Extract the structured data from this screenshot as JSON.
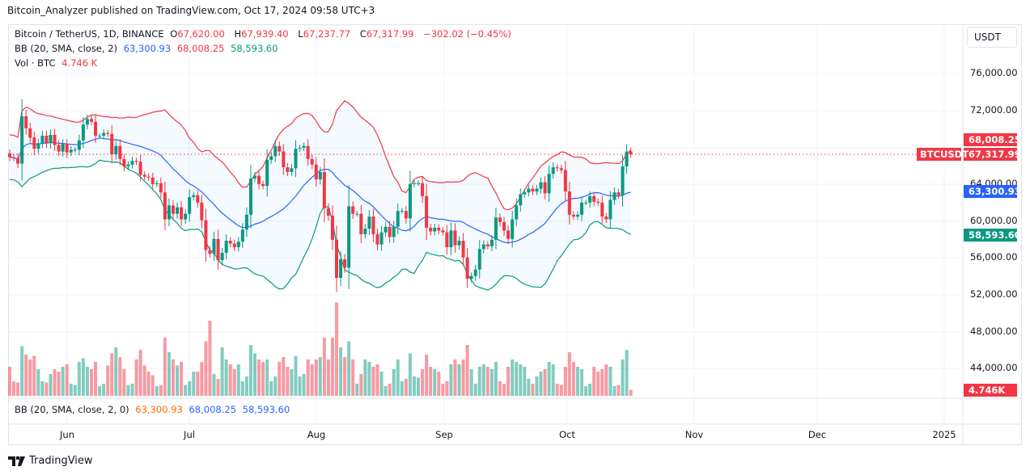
{
  "header": "Bitcoin_Analyzer published on TradingView.com, Oct 17, 2024 09:58 UTC+3",
  "legend": {
    "symbol": "Bitcoin / TetherUS, 1D, BINANCE",
    "o_label": "O",
    "o": "67,620.00",
    "h_label": "H",
    "h": "67,939.40",
    "l_label": "L",
    "l": "67,237.77",
    "c_label": "C",
    "c": "67,317.99",
    "change": "−302.02 (−0.45%)",
    "bb_label": "BB (20, SMA, close, 2)",
    "bb_basis": "63,300.93",
    "bb_upper": "68,008.25",
    "bb_lower": "58,593.60",
    "vol_label": "Vol · BTC",
    "vol": "4.746 K"
  },
  "bb_pane": {
    "label": "BB (20, SMA, close, 2, 0)",
    "basis": "63,300.93",
    "upper": "68,008.25",
    "lower": "58,593.60"
  },
  "price_axis": {
    "currency": "USDT",
    "ticks": [
      "76,000.00",
      "72,000.00",
      "64,000.00",
      "60,000.00",
      "56,000.00",
      "52,000.00",
      "48,000.00",
      "44,000.00"
    ],
    "tags": {
      "upper": "68,008.25",
      "last": "67,317.99",
      "basis": "63,300.93",
      "lower": "58,593.60",
      "volume": "4.746K",
      "symbol": "BTCUSDT"
    }
  },
  "time_axis": [
    "Jun",
    "Jul",
    "Aug",
    "Sep",
    "Oct",
    "Nov",
    "Dec",
    "2025"
  ],
  "footer": "TradingView",
  "colors": {
    "up": "#089981",
    "down": "#f23645",
    "bb_upper": "#f23645",
    "bb_basis": "#2962ff",
    "bb_lower": "#089981"
  },
  "chart_data": {
    "type": "candlestick",
    "timeframe": "1D",
    "start_date": "2024-05-17",
    "end_date": "2024-10-16",
    "ylim": [
      42000,
      78000
    ],
    "indicators": [
      "Bollinger Bands (20, SMA, 2)",
      "Volume"
    ],
    "close": [
      67.0,
      66.9,
      66.3,
      71.4,
      70.1,
      69.1,
      67.9,
      68.5,
      69.3,
      68.5,
      69.4,
      68.3,
      67.6,
      68.4,
      67.5,
      67.8,
      67.8,
      68.8,
      70.5,
      71.1,
      70.8,
      69.3,
      69.3,
      69.6,
      69.5,
      67.3,
      68.2,
      66.8,
      66.0,
      66.2,
      66.6,
      66.5,
      65.1,
      64.9,
      64.8,
      64.1,
      64.2,
      63.2,
      60.3,
      61.8,
      60.9,
      61.6,
      60.3,
      60.9,
      62.7,
      62.9,
      62.1,
      60.2,
      57.0,
      56.6,
      58.2,
      55.9,
      56.7,
      58.0,
      57.7,
      57.3,
      57.9,
      59.2,
      60.8,
      64.7,
      65.0,
      64.1,
      63.9,
      66.7,
      67.1,
      68.2,
      67.6,
      65.9,
      65.4,
      65.8,
      67.9,
      68.0,
      68.2,
      66.8,
      66.2,
      64.6,
      65.4,
      61.5,
      60.7,
      58.1,
      54.0,
      56.0,
      55.1,
      61.7,
      60.9,
      60.9,
      58.7,
      59.3,
      60.6,
      58.7,
      57.6,
      58.9,
      59.5,
      58.4,
      59.5,
      61.2,
      61.2,
      60.4,
      64.1,
      64.2,
      64.2,
      62.8,
      59.4,
      59.0,
      59.4,
      59.1,
      58.9,
      57.3,
      59.1,
      57.5,
      58.0,
      56.2,
      53.9,
      54.2,
      54.9,
      57.1,
      57.6,
      57.4,
      58.1,
      60.5,
      60.0,
      59.1,
      58.2,
      60.3,
      61.8,
      63.0,
      63.2,
      63.6,
      63.3,
      63.6,
      64.3,
      63.1,
      65.2,
      65.9,
      65.8,
      65.6,
      63.3,
      60.8,
      60.6,
      60.8,
      62.1,
      62.1,
      62.8,
      62.2,
      62.1,
      60.6,
      60.3,
      62.4,
      63.2,
      62.9,
      66.0,
      67.6,
      67.318
    ],
    "close_unit": "thousand USDT",
    "volume": [
      24,
      12,
      11,
      41,
      34,
      30,
      33,
      22,
      12,
      11,
      18,
      22,
      20,
      24,
      26,
      10,
      9,
      28,
      31,
      24,
      22,
      28,
      8,
      10,
      25,
      35,
      40,
      32,
      22,
      9,
      10,
      30,
      38,
      25,
      20,
      17,
      8,
      9,
      48,
      36,
      30,
      25,
      28,
      9,
      12,
      20,
      20,
      28,
      45,
      62,
      18,
      14,
      40,
      30,
      26,
      22,
      26,
      12,
      16,
      42,
      35,
      30,
      28,
      30,
      12,
      16,
      28,
      32,
      24,
      22,
      33,
      16,
      18,
      30,
      26,
      30,
      32,
      48,
      30,
      48,
      77,
      40,
      32,
      45,
      30,
      10,
      18,
      30,
      28,
      24,
      26,
      20,
      8,
      10,
      22,
      30,
      12,
      14,
      35,
      16,
      15,
      22,
      34,
      24,
      22,
      20,
      10,
      12,
      26,
      30,
      26,
      30,
      42,
      22,
      10,
      24,
      26,
      24,
      22,
      28,
      12,
      10,
      24,
      30,
      28,
      26,
      24,
      14,
      10,
      16,
      20,
      22,
      28,
      26,
      10,
      9,
      24,
      36,
      28,
      24,
      22,
      8,
      10,
      24,
      20,
      22,
      26,
      24,
      8,
      9,
      30,
      38,
      5
    ]
  }
}
